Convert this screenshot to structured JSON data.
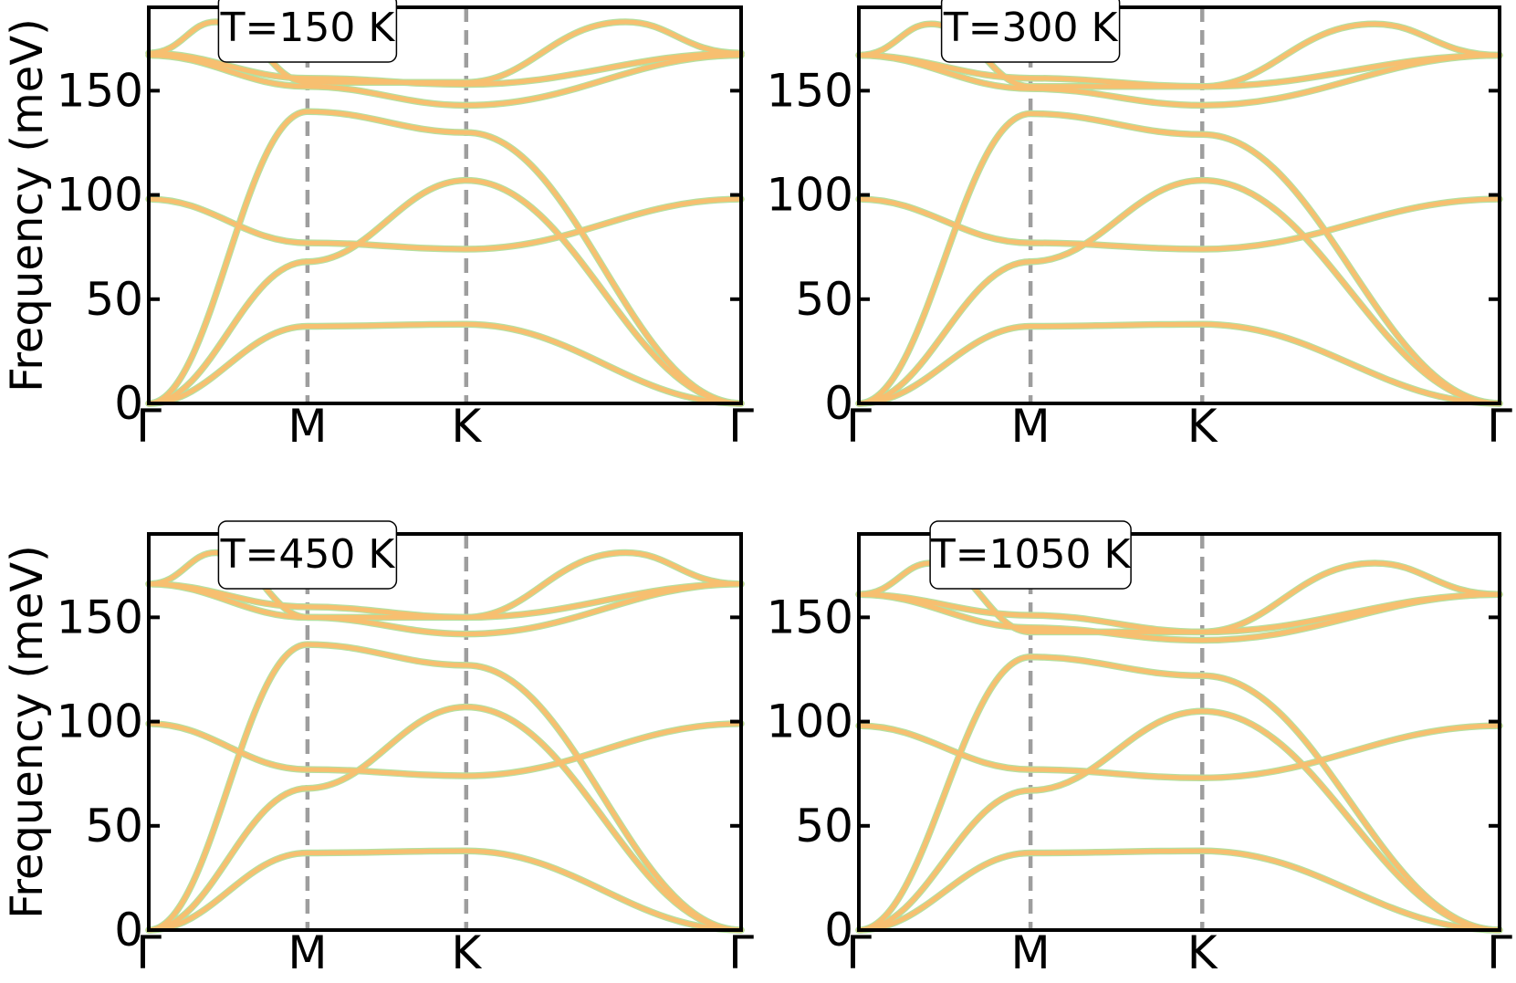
{
  "chart_data": [
    {
      "type": "line",
      "title": "",
      "annotation": "T=150 K",
      "ylabel": "Frequency (meV)",
      "xlabel": "",
      "ylim": [
        0,
        190
      ],
      "yticks": [
        0,
        50,
        100,
        150
      ],
      "ytick_labels": [
        "0",
        "50",
        "100",
        "150"
      ],
      "xtick_labels": [
        "Γ",
        "M",
        "K",
        "Γ"
      ],
      "x_segments": [
        1.0,
        1.0,
        1.732
      ],
      "grid": false,
      "legend": "none",
      "colors": {
        "highlight": "#b5e0a0",
        "main": "#f7bf70",
        "divider": "#9e9e9e"
      },
      "branches": [
        [
          0,
          37,
          38,
          0
        ],
        [
          0,
          68,
          107,
          0
        ],
        [
          0,
          140,
          130,
          0
        ],
        [
          98,
          77,
          74,
          98
        ],
        [
          167,
          152,
          143,
          167
        ],
        [
          168,
          156,
          153,
          168
        ]
      ],
      "peak_branch": {
        "start": 168,
        "peak": 183,
        "end": 154
      }
    },
    {
      "type": "line",
      "title": "",
      "annotation": "T=300 K",
      "ylabel": "",
      "xlabel": "",
      "ylim": [
        0,
        190
      ],
      "yticks": [
        0,
        50,
        100,
        150
      ],
      "ytick_labels": [
        "0",
        "50",
        "100",
        "150"
      ],
      "xtick_labels": [
        "Γ",
        "M",
        "K",
        "Γ"
      ],
      "x_segments": [
        1.0,
        1.0,
        1.732
      ],
      "grid": false,
      "legend": "none",
      "colors": {
        "highlight": "#b5e0a0",
        "main": "#f7bf70",
        "divider": "#9e9e9e"
      },
      "branches": [
        [
          0,
          37,
          38,
          0
        ],
        [
          0,
          68,
          107,
          0
        ],
        [
          0,
          139,
          129,
          0
        ],
        [
          98,
          77,
          74,
          98
        ],
        [
          167,
          151,
          143,
          167
        ],
        [
          167,
          156,
          152,
          167
        ]
      ],
      "peak_branch": {
        "start": 167,
        "peak": 182,
        "end": 152
      }
    },
    {
      "type": "line",
      "title": "",
      "annotation": "T=450 K",
      "ylabel": "Frequency (meV)",
      "xlabel": "",
      "ylim": [
        0,
        190
      ],
      "yticks": [
        0,
        50,
        100,
        150
      ],
      "ytick_labels": [
        "0",
        "50",
        "100",
        "150"
      ],
      "xtick_labels": [
        "Γ",
        "M",
        "K",
        "Γ"
      ],
      "x_segments": [
        1.0,
        1.0,
        1.732
      ],
      "grid": false,
      "legend": "none",
      "colors": {
        "highlight": "#b5e0a0",
        "main": "#f7bf70",
        "divider": "#9e9e9e"
      },
      "branches": [
        [
          0,
          37,
          38,
          0
        ],
        [
          0,
          68,
          107,
          0
        ],
        [
          0,
          137,
          127,
          0
        ],
        [
          99,
          77,
          74,
          99
        ],
        [
          166,
          150,
          142,
          166
        ],
        [
          166,
          155,
          150,
          166
        ]
      ],
      "peak_branch": {
        "start": 166,
        "peak": 181,
        "end": 150
      }
    },
    {
      "type": "line",
      "title": "",
      "annotation": "T=1050 K",
      "ylabel": "",
      "xlabel": "",
      "ylim": [
        0,
        190
      ],
      "yticks": [
        0,
        50,
        100,
        150
      ],
      "ytick_labels": [
        "0",
        "50",
        "100",
        "150"
      ],
      "xtick_labels": [
        "Γ",
        "M",
        "K",
        "Γ"
      ],
      "x_segments": [
        1.0,
        1.0,
        1.732
      ],
      "grid": false,
      "legend": "none",
      "colors": {
        "highlight": "#b5e0a0",
        "main": "#f7bf70",
        "divider": "#9e9e9e"
      },
      "branches": [
        [
          0,
          37,
          38,
          0
        ],
        [
          0,
          67,
          105,
          0
        ],
        [
          0,
          131,
          122,
          0
        ],
        [
          98,
          77,
          73,
          98
        ],
        [
          161,
          145,
          139,
          161
        ],
        [
          161,
          151,
          143,
          161
        ]
      ],
      "peak_branch": {
        "start": 161,
        "peak": 176,
        "end": 143
      }
    }
  ]
}
